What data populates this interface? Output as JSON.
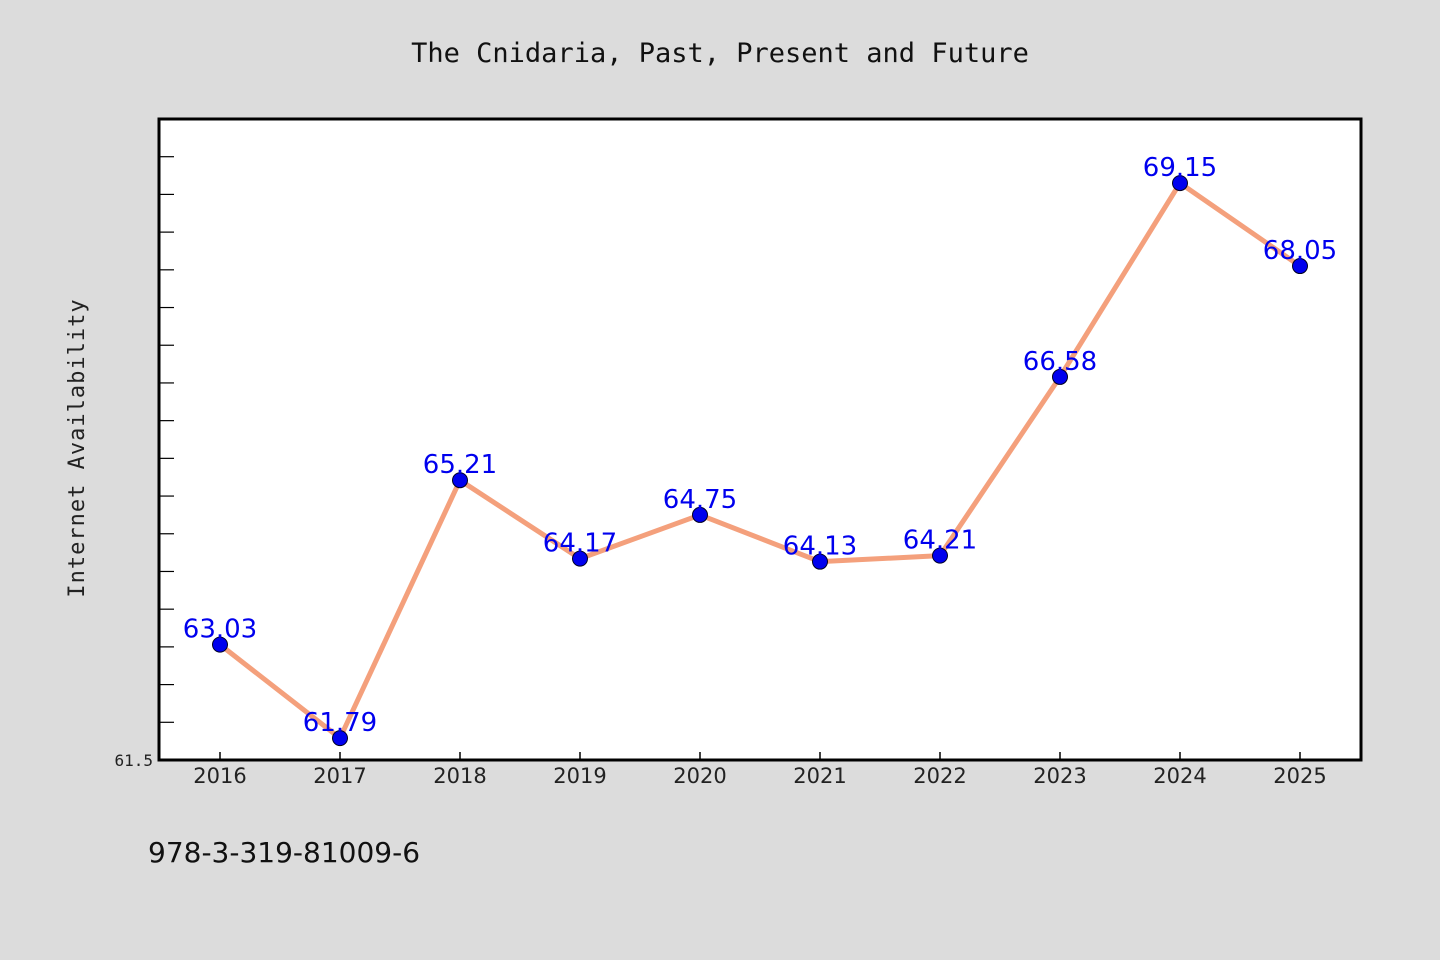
{
  "chart_data": {
    "type": "line",
    "title": "The Cnidaria, Past, Present and Future",
    "xlabel": "",
    "ylabel": "Internet Availability",
    "categories": [
      "2016",
      "2017",
      "2018",
      "2019",
      "2020",
      "2021",
      "2022",
      "2023",
      "2024",
      "2025"
    ],
    "series": [
      {
        "values": [
          63.03,
          61.79,
          65.21,
          64.17,
          64.75,
          64.13,
          64.21,
          66.58,
          69.15,
          68.05
        ],
        "labels": [
          "63.03",
          "61.79",
          "65.21",
          "64.17",
          "64.75",
          "64.13",
          "64.21",
          "66.58",
          "69.15",
          "68.05"
        ]
      }
    ],
    "y_tick_labels": [
      "61.5"
    ],
    "ylim": [
      61.5,
      70.0
    ],
    "grid": false,
    "line_color": "#f4a07c",
    "marker_color": "#0000ee",
    "label_color": "#0000ee"
  },
  "footer": {
    "isbn": "978-3-319-81009-6"
  }
}
